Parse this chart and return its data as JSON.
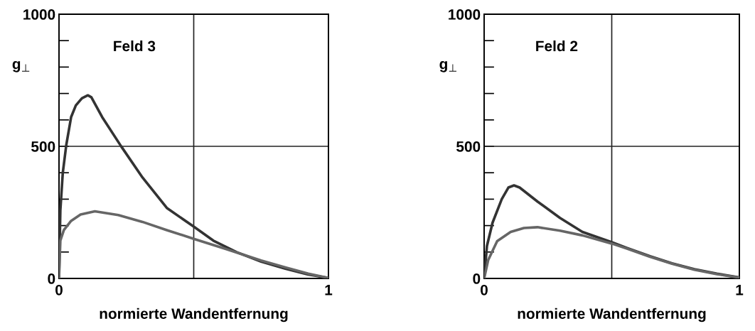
{
  "chart_data": [
    {
      "type": "line",
      "xlabel": "normierte Wandentfernung",
      "ylabel": "g$_{⊥}$",
      "annotations": [
        "Feld 3"
      ],
      "xlim": [
        0,
        1
      ],
      "xticks": [
        0,
        1
      ],
      "ylim": [
        0,
        1000
      ],
      "yticks": [
        0,
        {
          "value": 100,
          "label": null
        },
        {
          "value": 200,
          "label": null
        },
        {
          "value": 300,
          "label": null
        },
        {
          "value": 400,
          "label": null
        },
        500,
        {
          "value": 600,
          "label": null
        },
        {
          "value": 700,
          "label": null
        },
        {
          "value": 800,
          "label": null
        },
        {
          "value": 900,
          "label": null
        },
        1000
      ],
      "ref_lines": [
        {
          "axis": "x",
          "value": 0.5,
          "color": "#222222"
        },
        {
          "axis": "y",
          "value": 500,
          "color": "#222222"
        }
      ],
      "series": [
        {
          "color": "#333333",
          "x": [
            0,
            0.005,
            0.014,
            0.027,
            0.045,
            0.0625,
            0.085,
            0.107,
            0.12,
            0.16,
            0.23,
            0.31,
            0.4,
            0.5,
            0.573,
            0.66,
            0.75,
            0.84,
            0.925,
            1
          ],
          "values": [
            0,
            258,
            399,
            505,
            611,
            655,
            682,
            693,
            686,
            611,
            501,
            382,
            267,
            196,
            143,
            99,
            64,
            37,
            15,
            2
          ]
        },
        {
          "color": "#666666",
          "x": [
            0,
            0.005,
            0.018,
            0.045,
            0.08,
            0.133,
            0.22,
            0.31,
            0.4,
            0.5,
            0.617,
            0.75,
            0.84,
            0.925,
            1
          ],
          "values": [
            0,
            143,
            183,
            218,
            242,
            254,
            240,
            214,
            183,
            150,
            112,
            68,
            42,
            18,
            2
          ]
        }
      ]
    },
    {
      "type": "line",
      "xlabel": "normierte Wandentfernung",
      "ylabel": "g$_{⊥}$",
      "annotations": [
        "Feld 2"
      ],
      "xlim": [
        0,
        1
      ],
      "xticks": [
        0,
        1
      ],
      "ylim": [
        0,
        1000
      ],
      "yticks": [
        0,
        {
          "value": 100,
          "label": null
        },
        {
          "value": 200,
          "label": null
        },
        {
          "value": 300,
          "label": null
        },
        {
          "value": 400,
          "label": null
        },
        500,
        {
          "value": 600,
          "label": null
        },
        {
          "value": 700,
          "label": null
        },
        {
          "value": 800,
          "label": null
        },
        {
          "value": 900,
          "label": null
        },
        1000
      ],
      "ref_lines": [
        {
          "axis": "x",
          "value": 0.5,
          "color": "#222222"
        },
        {
          "axis": "y",
          "value": 500,
          "color": "#222222"
        }
      ],
      "series": [
        {
          "color": "#333333",
          "x": [
            0,
            0.011,
            0.033,
            0.069,
            0.095,
            0.117,
            0.139,
            0.209,
            0.297,
            0.385,
            0.5,
            0.56,
            0.65,
            0.736,
            0.824,
            0.912,
            1
          ],
          "values": [
            0,
            123,
            211,
            300,
            344,
            352,
            344,
            291,
            229,
            176,
            137,
            115,
            84,
            57,
            35,
            18,
            4
          ]
        },
        {
          "color": "#666666",
          "x": [
            0,
            0.016,
            0.051,
            0.104,
            0.156,
            0.209,
            0.297,
            0.385,
            0.5,
            0.56,
            0.65,
            0.736,
            0.824,
            0.912,
            1
          ],
          "values": [
            0,
            70,
            141,
            176,
            191,
            194,
            181,
            163,
            132,
            113,
            82,
            56,
            33,
            16,
            3
          ]
        }
      ]
    }
  ]
}
